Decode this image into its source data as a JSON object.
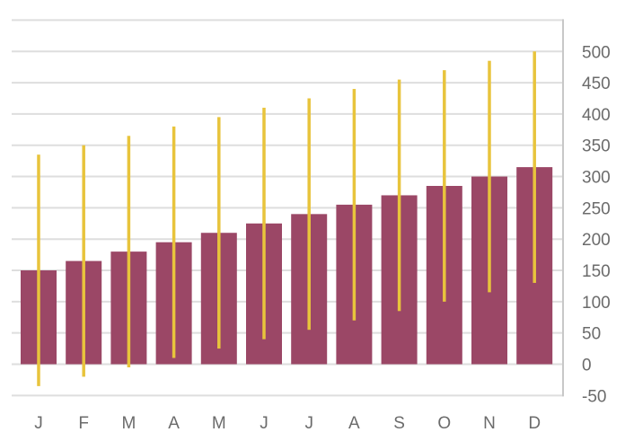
{
  "chart_data": {
    "type": "bar",
    "title": "",
    "xlabel": "",
    "ylabel": "",
    "categories": [
      "J",
      "F",
      "M",
      "A",
      "M",
      "J",
      "J",
      "A",
      "S",
      "O",
      "N",
      "D"
    ],
    "series": [
      {
        "values": [
          150,
          165,
          180,
          195,
          210,
          225,
          240,
          255,
          270,
          285,
          300,
          315
        ]
      },
      {
        "type": "range",
        "low": [
          -35,
          -20,
          -5,
          10,
          25,
          40,
          55,
          70,
          85,
          100,
          115,
          130
        ],
        "high": [
          335,
          350,
          365,
          380,
          395,
          410,
          425,
          440,
          455,
          470,
          485,
          500
        ]
      }
    ],
    "yticks": [
      -50,
      0,
      50,
      100,
      150,
      200,
      250,
      300,
      350,
      400,
      450,
      500
    ],
    "ylim": [
      -50,
      550
    ],
    "y_axis_side": "right",
    "grid": true,
    "legend": "none",
    "colors": {
      "bar": "#9b4766",
      "range": "#e8c43c",
      "grid": "#dedede",
      "axis": "#c8c8c8",
      "text": "#6b6b6b"
    }
  }
}
